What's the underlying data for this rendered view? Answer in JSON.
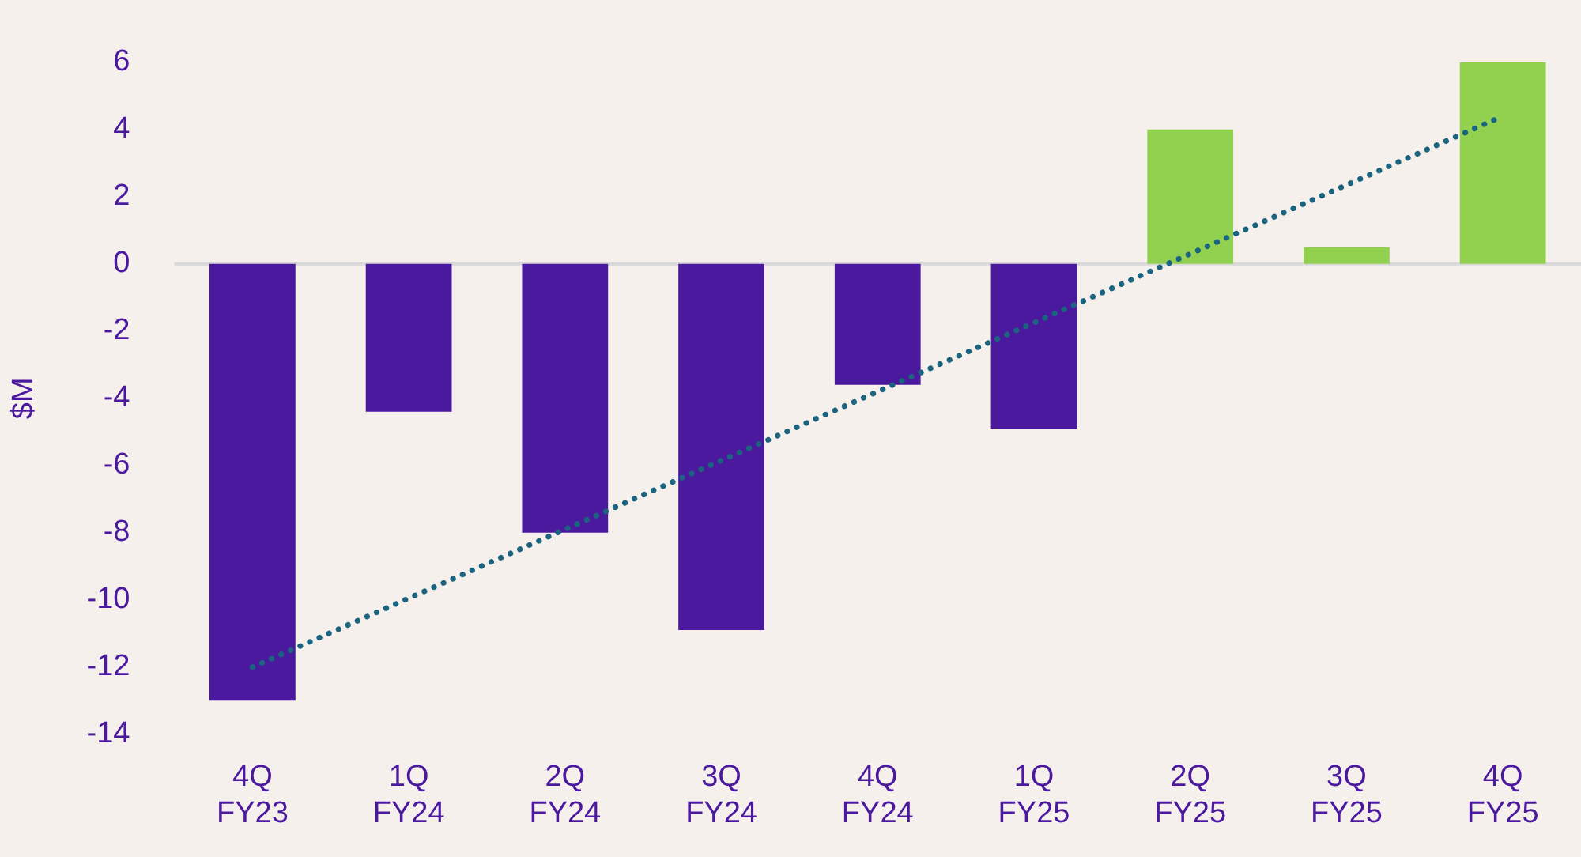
{
  "chart_data": {
    "type": "bar",
    "ylabel": "$M",
    "categories": [
      "4Q FY23",
      "1Q FY24",
      "2Q FY24",
      "3Q FY24",
      "4Q FY24",
      "1Q FY25",
      "2Q FY25",
      "3Q FY25",
      "4Q FY25"
    ],
    "series": [
      {
        "colors": [
          "#4b199e",
          "#4b199e",
          "#4b199e",
          "#4b199e",
          "#4b199e",
          "#4b199e",
          "#92d050",
          "#92d050",
          "#92d050"
        ],
        "values": [
          -13.0,
          -4.4,
          -8.0,
          -10.9,
          -3.6,
          -4.9,
          4.0,
          0.5,
          6.0
        ]
      },
      {
        "type": "line",
        "color": "#1b6480",
        "line_style": "dotted",
        "marker": "none",
        "values": [
          -12.0,
          null,
          null,
          null,
          null,
          null,
          null,
          null,
          4.4
        ]
      }
    ],
    "ylim": [
      -14,
      6
    ],
    "yticks": [
      -14,
      -12,
      -10,
      -8,
      -6,
      -4,
      -2,
      0,
      2,
      4,
      6
    ],
    "ref_lines": [
      {
        "axis": "y",
        "value": 0,
        "color": "#d9d9d9"
      }
    ],
    "grid": false,
    "legend": false
  }
}
